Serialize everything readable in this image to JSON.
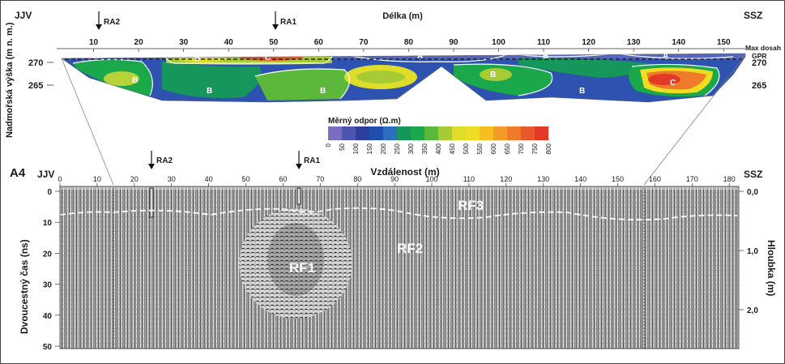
{
  "top_section": {
    "left_label": "JJV",
    "right_label": "SSZ",
    "axis_title": "Délka (m)",
    "y_axis_title": "Nadmořská výška (m n. m.)",
    "x_ticks": [
      "10",
      "20",
      "30",
      "40",
      "50",
      "60",
      "70",
      "80",
      "90",
      "100",
      "110",
      "120",
      "130",
      "140",
      "150"
    ],
    "y_ticks_left": [
      "270",
      "265"
    ],
    "y_ticks_right": [
      "270",
      "265"
    ],
    "max_depth_label": "Max dosah",
    "gpr_label": "GPR",
    "boreholes": [
      "RA2",
      "RA1"
    ],
    "zone_labels_a": [
      "A",
      "A",
      "A"
    ],
    "zone_labels_b": [
      "B",
      "B",
      "B",
      "B",
      "B",
      "B",
      "B",
      "B"
    ],
    "zone_labels_c": [
      "C",
      "C"
    ]
  },
  "legend": {
    "title": "Měrný odpor (Ω.m)",
    "ticks": [
      "0",
      "50",
      "100",
      "150",
      "200",
      "250",
      "300",
      "350",
      "400",
      "450",
      "500",
      "550",
      "600",
      "650",
      "700",
      "750",
      "800"
    ],
    "colors": [
      "#7b6dbd",
      "#4e55b0",
      "#2d3f9e",
      "#1f4fae",
      "#2a6fc0",
      "#17965c",
      "#1aa84a",
      "#5cb83a",
      "#a6cb35",
      "#dede2a",
      "#f0dc20",
      "#f7be21",
      "#f49a27",
      "#ef7a2a",
      "#e9582a",
      "#e23a26"
    ]
  },
  "bottom_section": {
    "panel_label": "A4",
    "left_label": "JJV",
    "right_label": "SSZ",
    "axis_title": "Vzdálenost (m)",
    "x_ticks": [
      "0",
      "10",
      "20",
      "30",
      "40",
      "50",
      "60",
      "70",
      "80",
      "90",
      "100",
      "110",
      "120",
      "130",
      "140",
      "150",
      "160",
      "170",
      "180"
    ],
    "y_axis_title": "Dvoucestný čas (ns)",
    "y_ticks": [
      "0",
      "10",
      "20",
      "30",
      "40",
      "50"
    ],
    "right_axis_title": "Hloubka (m)",
    "depth_ticks": [
      "0,0",
      "1,0",
      "2,0"
    ],
    "boreholes": [
      "RA2",
      "RA1"
    ],
    "reflectors": [
      "RF3",
      "RF2",
      "RF1"
    ]
  }
}
